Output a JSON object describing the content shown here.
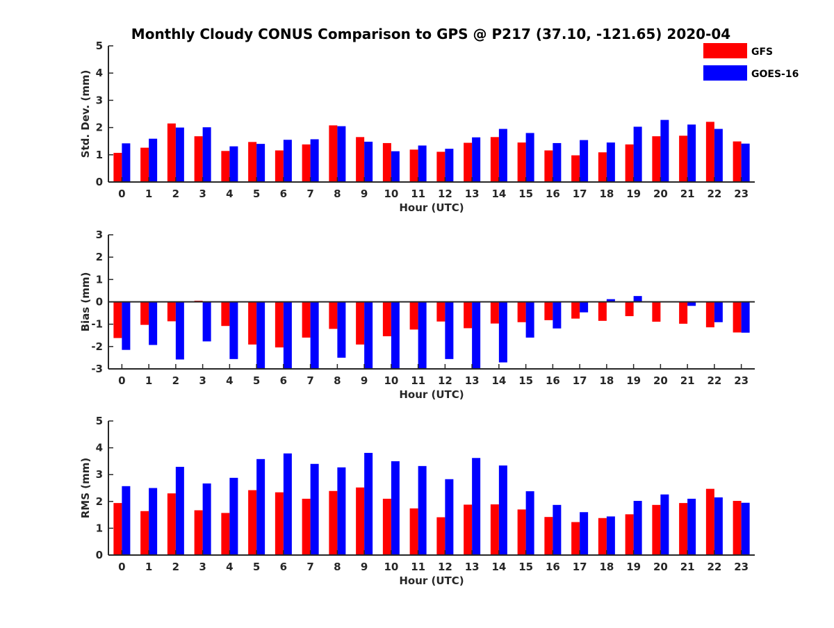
{
  "title": "Monthly Cloudy CONUS Comparison to GPS @ P217 (37.10, -121.65) 2020-04",
  "legend": {
    "placement": "top-right",
    "entries": [
      {
        "name": "GFS",
        "color": "#ff0000"
      },
      {
        "name": "GOES-16",
        "color": "#0000ff"
      }
    ]
  },
  "chart_data": [
    {
      "type": "bar",
      "xlabel": "Hour (UTC)",
      "ylabel": "Std. Dev. (mm)",
      "ylim": [
        0,
        5
      ],
      "yticks": [
        "0",
        "1",
        "2",
        "3",
        "4",
        "5"
      ],
      "categories": [
        "0",
        "1",
        "2",
        "3",
        "4",
        "5",
        "6",
        "7",
        "8",
        "9",
        "10",
        "11",
        "12",
        "13",
        "14",
        "15",
        "16",
        "17",
        "18",
        "19",
        "20",
        "21",
        "22",
        "23"
      ],
      "series": [
        {
          "name": "GFS",
          "color": "#ff0000",
          "values": [
            1.07,
            1.26,
            2.15,
            1.68,
            1.14,
            1.47,
            1.16,
            1.38,
            2.08,
            1.65,
            1.43,
            1.19,
            1.11,
            1.44,
            1.65,
            1.45,
            1.16,
            0.98,
            1.09,
            1.38,
            1.68,
            1.7,
            2.21,
            1.49
          ]
        },
        {
          "name": "GOES-16",
          "color": "#0000ff",
          "values": [
            1.42,
            1.59,
            2.0,
            2.01,
            1.31,
            1.4,
            1.55,
            1.57,
            2.05,
            1.48,
            1.13,
            1.34,
            1.22,
            1.64,
            1.95,
            1.8,
            1.43,
            1.54,
            1.45,
            2.03,
            2.28,
            2.11,
            1.95,
            1.41
          ]
        }
      ]
    },
    {
      "type": "bar",
      "xlabel": "Hour (UTC)",
      "ylabel": "Bias (mm)",
      "ylim": [
        -3,
        3
      ],
      "yticks": [
        "-3",
        "-2",
        "-1",
        "0",
        "1",
        "2",
        "3"
      ],
      "categories": [
        "0",
        "1",
        "2",
        "3",
        "4",
        "5",
        "6",
        "7",
        "8",
        "9",
        "10",
        "11",
        "12",
        "13",
        "14",
        "15",
        "16",
        "17",
        "18",
        "19",
        "20",
        "21",
        "22",
        "23"
      ],
      "series": [
        {
          "name": "GFS",
          "color": "#ff0000",
          "values": [
            -1.62,
            -1.03,
            -0.87,
            0.05,
            -1.08,
            -1.91,
            -2.04,
            -1.6,
            -1.21,
            -1.91,
            -1.54,
            -1.24,
            -0.88,
            -1.18,
            -0.97,
            -0.91,
            -0.82,
            -0.75,
            -0.85,
            -0.64,
            -0.89,
            -0.98,
            -1.14,
            -1.37
          ]
        },
        {
          "name": "GOES-16",
          "color": "#0000ff",
          "values": [
            -2.15,
            -1.93,
            -2.58,
            -1.77,
            -2.56,
            -3.0,
            -3.0,
            -3.0,
            -2.5,
            -3.0,
            -3.0,
            -3.0,
            -2.56,
            -3.0,
            -2.71,
            -1.6,
            -1.19,
            -0.47,
            0.12,
            0.26,
            0.0,
            -0.18,
            -0.91,
            -1.38
          ]
        }
      ]
    },
    {
      "type": "bar",
      "xlabel": "Hour (UTC)",
      "ylabel": "RMS (mm)",
      "ylim": [
        0,
        5
      ],
      "yticks": [
        "0",
        "1",
        "2",
        "3",
        "4",
        "5"
      ],
      "categories": [
        "0",
        "1",
        "2",
        "3",
        "4",
        "5",
        "6",
        "7",
        "8",
        "9",
        "10",
        "11",
        "12",
        "13",
        "14",
        "15",
        "16",
        "17",
        "18",
        "19",
        "20",
        "21",
        "22",
        "23"
      ],
      "series": [
        {
          "name": "GFS",
          "color": "#ff0000",
          "values": [
            1.94,
            1.64,
            2.3,
            1.67,
            1.57,
            2.42,
            2.34,
            2.1,
            2.39,
            2.52,
            2.1,
            1.74,
            1.41,
            1.88,
            1.89,
            1.7,
            1.42,
            1.23,
            1.38,
            1.52,
            1.87,
            1.94,
            2.47,
            2.02
          ]
        },
        {
          "name": "GOES-16",
          "color": "#0000ff",
          "values": [
            2.57,
            2.5,
            3.29,
            2.67,
            2.88,
            3.58,
            3.79,
            3.4,
            3.27,
            3.81,
            3.5,
            3.32,
            2.83,
            3.62,
            3.34,
            2.38,
            1.87,
            1.6,
            1.44,
            2.02,
            2.26,
            2.1,
            2.15,
            1.95
          ]
        }
      ]
    }
  ]
}
